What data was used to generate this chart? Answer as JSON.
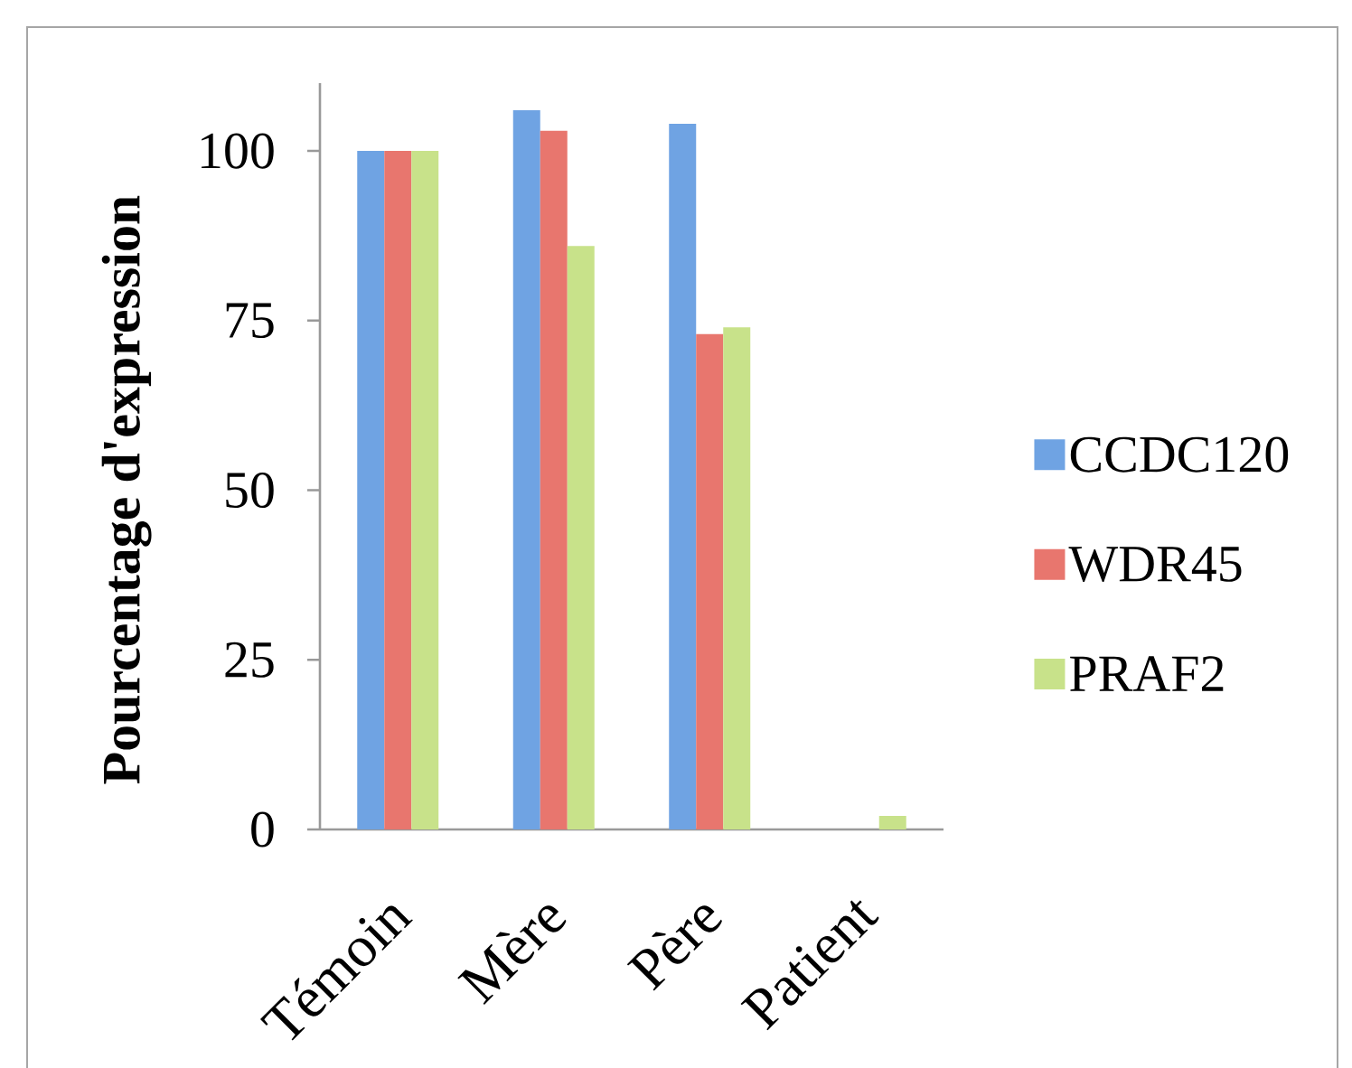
{
  "chart_data": {
    "type": "bar",
    "ylabel": "Pourcentage d'expression",
    "categories": [
      "Témoin",
      "Mère",
      "Père",
      "Patient"
    ],
    "series": [
      {
        "name": "CCDC120",
        "color": "#6fa3e3",
        "values": [
          100,
          106,
          104,
          0
        ]
      },
      {
        "name": "WDR45",
        "color": "#e8766e",
        "values": [
          100,
          103,
          73,
          0
        ]
      },
      {
        "name": "PRAF2",
        "color": "#c8e28a",
        "values": [
          100,
          86,
          74,
          2
        ]
      }
    ],
    "ylim": [
      0,
      110
    ],
    "yticks": [
      0,
      25,
      50,
      75,
      100
    ],
    "legend": "right"
  }
}
